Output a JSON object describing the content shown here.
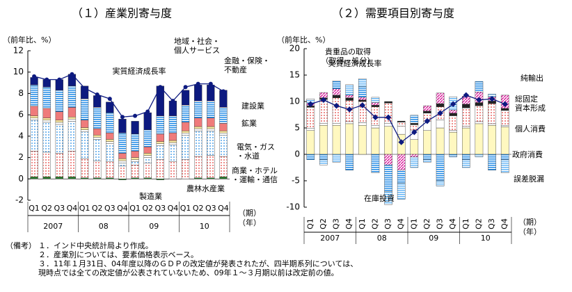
{
  "chart_data": [
    {
      "type": "bar",
      "stacked": true,
      "title": "（１）産業別寄与度",
      "y_label": "（前年比、%）",
      "categories": [
        "Q1",
        "Q2",
        "Q3",
        "Q4",
        "Q1",
        "Q2",
        "Q3",
        "Q4",
        "Q1",
        "Q2",
        "Q3",
        "Q4",
        "Q1",
        "Q2",
        "Q3",
        "Q4"
      ],
      "x_groups": [
        "2007",
        "08",
        "09",
        "10"
      ],
      "x_unit_labels": [
        "（期）",
        "（年）"
      ],
      "ylim": [
        -2,
        12
      ],
      "yticks": [
        -2,
        0,
        2,
        4,
        6,
        8,
        10,
        12
      ],
      "series": [
        {
          "name": "農林水産業",
          "color": "#2e7d32",
          "pattern": "solid",
          "values": [
            0.2,
            0.2,
            0.2,
            0.2,
            0.1,
            0.1,
            0.1,
            -0.1,
            0.1,
            0.1,
            -0.1,
            0.0,
            0.0,
            0.1,
            0.1,
            0.2
          ]
        },
        {
          "name": "商業・ホテル\n・運輸・通信",
          "color": "#e53935",
          "pattern": "dots",
          "values": [
            2.4,
            2.3,
            2.2,
            2.4,
            1.8,
            1.6,
            1.5,
            1.2,
            1.2,
            1.4,
            1.8,
            1.6,
            1.8,
            2.0,
            2.1,
            1.9
          ]
        },
        {
          "name": "製造業",
          "color": "#1e88e5",
          "pattern": "dots",
          "values": [
            2.9,
            2.8,
            2.7,
            2.8,
            2.5,
            2.0,
            1.7,
            0.3,
            0.3,
            0.5,
            1.3,
            1.6,
            2.3,
            2.4,
            2.3,
            2.0
          ]
        },
        {
          "name": "電気・ガス\n・水道",
          "color": "#ffffff",
          "pattern": "solid",
          "values": [
            0.2,
            0.2,
            0.2,
            0.2,
            0.2,
            0.2,
            0.2,
            0.2,
            0.2,
            0.2,
            0.2,
            0.2,
            0.2,
            0.2,
            0.2,
            0.2
          ]
        },
        {
          "name": "鉱業",
          "color": "#f9e79f",
          "pattern": "solid",
          "values": [
            0.2,
            0.2,
            0.2,
            0.2,
            0.2,
            0.2,
            0.2,
            0.2,
            0.2,
            0.2,
            0.2,
            0.2,
            0.2,
            0.2,
            0.2,
            0.2
          ]
        },
        {
          "name": "建設業",
          "color": "#ef7b7b",
          "pattern": "solid",
          "values": [
            0.9,
            0.9,
            0.8,
            0.9,
            0.7,
            0.6,
            0.6,
            0.5,
            0.6,
            0.6,
            0.7,
            0.7,
            0.8,
            0.8,
            0.8,
            0.7
          ]
        },
        {
          "name": "金融・保険・\n不動産",
          "color": "#1e88e5",
          "pattern": "hstripes",
          "values": [
            2.0,
            2.0,
            2.0,
            2.0,
            2.0,
            2.0,
            1.9,
            1.9,
            1.6,
            1.6,
            1.7,
            1.6,
            1.6,
            1.6,
            1.6,
            1.5
          ]
        },
        {
          "name": "地域・社会・\n個人サービス",
          "color": "#0d1a80",
          "pattern": "solid",
          "values": [
            0.7,
            0.7,
            1.0,
            1.1,
            1.2,
            1.1,
            1.0,
            1.3,
            1.2,
            1.6,
            2.8,
            1.4,
            1.4,
            1.5,
            1.5,
            1.6
          ]
        }
      ],
      "line": {
        "name": "実質経済成長率",
        "color": "#0d1a80",
        "values": [
          9.6,
          9.3,
          9.3,
          9.8,
          8.5,
          7.9,
          7.5,
          5.8,
          5.9,
          6.3,
          8.6,
          7.3,
          8.6,
          8.9,
          8.9,
          8.2
        ]
      }
    },
    {
      "type": "bar",
      "stacked": true,
      "title": "（２）需要項目別寄与度",
      "y_label": "（前年比、%）",
      "categories": [
        "Q1",
        "Q2",
        "Q3",
        "Q4",
        "Q1",
        "Q2",
        "Q3",
        "Q4",
        "Q1",
        "Q2",
        "Q3",
        "Q4",
        "Q1",
        "Q2",
        "Q3",
        "Q4"
      ],
      "x_groups": [
        "2007",
        "08",
        "09",
        "10"
      ],
      "x_unit_labels": [
        "（期）",
        "（年）"
      ],
      "ylim": [
        -10,
        20
      ],
      "yticks": [
        -10,
        -5,
        0,
        5,
        10,
        15,
        20
      ],
      "series": [
        {
          "name": "個人消費",
          "color": "#fff8c0",
          "pattern": "solid",
          "values": [
            4.5,
            5.5,
            5.5,
            5.8,
            5.5,
            5.0,
            5.3,
            3.8,
            2.8,
            4.5,
            5.0,
            4.2,
            5.0,
            5.8,
            5.5,
            5.2
          ]
        },
        {
          "name": "政府消費",
          "color": "#ffffff",
          "pattern": "solid",
          "values": [
            0.4,
            0.4,
            0.4,
            0.4,
            0.5,
            0.5,
            0.6,
            1.5,
            1.8,
            1.8,
            1.5,
            0.3,
            0.3,
            0.4,
            0.3,
            0.3
          ]
        },
        {
          "name": "総固定\n資本形成",
          "color": "#e53935",
          "pattern": "dots",
          "values": [
            4.0,
            4.5,
            4.8,
            4.0,
            4.0,
            3.5,
            3.8,
            0.8,
            1.0,
            1.5,
            2.5,
            2.8,
            3.5,
            3.0,
            3.8,
            2.8
          ]
        },
        {
          "name": "貴重品の取得\n（取得－処分）",
          "color": "#222222",
          "pattern": "solid",
          "values": [
            0.3,
            0.3,
            0.5,
            0.5,
            0.3,
            0.3,
            0.3,
            0.2,
            0.3,
            0.4,
            0.6,
            0.5,
            0.7,
            0.6,
            0.5,
            0.4
          ]
        },
        {
          "name": "在庫投資",
          "color": "#d81b9a",
          "pattern": "diag",
          "values": [
            0.5,
            1.0,
            1.2,
            0.5,
            0.5,
            0.5,
            -2.0,
            -3.0,
            -0.5,
            1.0,
            2.0,
            0.6,
            1.5,
            2.0,
            0.8,
            2.5
          ]
        },
        {
          "name": "純輸出",
          "color": "#1e88e5",
          "pattern": "hstripes",
          "values": [
            -1.0,
            -1.0,
            1.5,
            -3.0,
            2.0,
            -3.5,
            -5.0,
            -2.5,
            1.5,
            -1.0,
            -5.0,
            -0.5,
            -1.0,
            2.0,
            -3.0,
            -1.0
          ]
        },
        {
          "name": "誤差脱漏",
          "color": "#64b5f6",
          "pattern": "hstripes",
          "values": [
            0.8,
            -1.0,
            -1.5,
            2.0,
            1.5,
            1.0,
            -2.5,
            -3.0,
            -2.0,
            -0.5,
            -1.0,
            2.5,
            -1.5,
            -0.5,
            0.5,
            -2.5
          ]
        }
      ],
      "line": {
        "name": "実質経済成長率",
        "color": "#0d1a80",
        "values": [
          9.5,
          10.3,
          9.2,
          8.5,
          9.3,
          7.0,
          7.0,
          2.3,
          4.2,
          6.3,
          7.8,
          9.5,
          11.2,
          10.3,
          10.5,
          9.5
        ]
      }
    }
  ],
  "notes": {
    "label": "（備考）",
    "items": [
      "１．インド中央統計局より作成。",
      "２．産業別については、要素価格表示ベース。",
      "３．11年１月31日、04年度以降のＧＤＰの改定値が発表されたが、四半期系列については、\n現時点では全ての改定値が公表されていないため、09年１～３月期以前は改定前の値。"
    ]
  }
}
